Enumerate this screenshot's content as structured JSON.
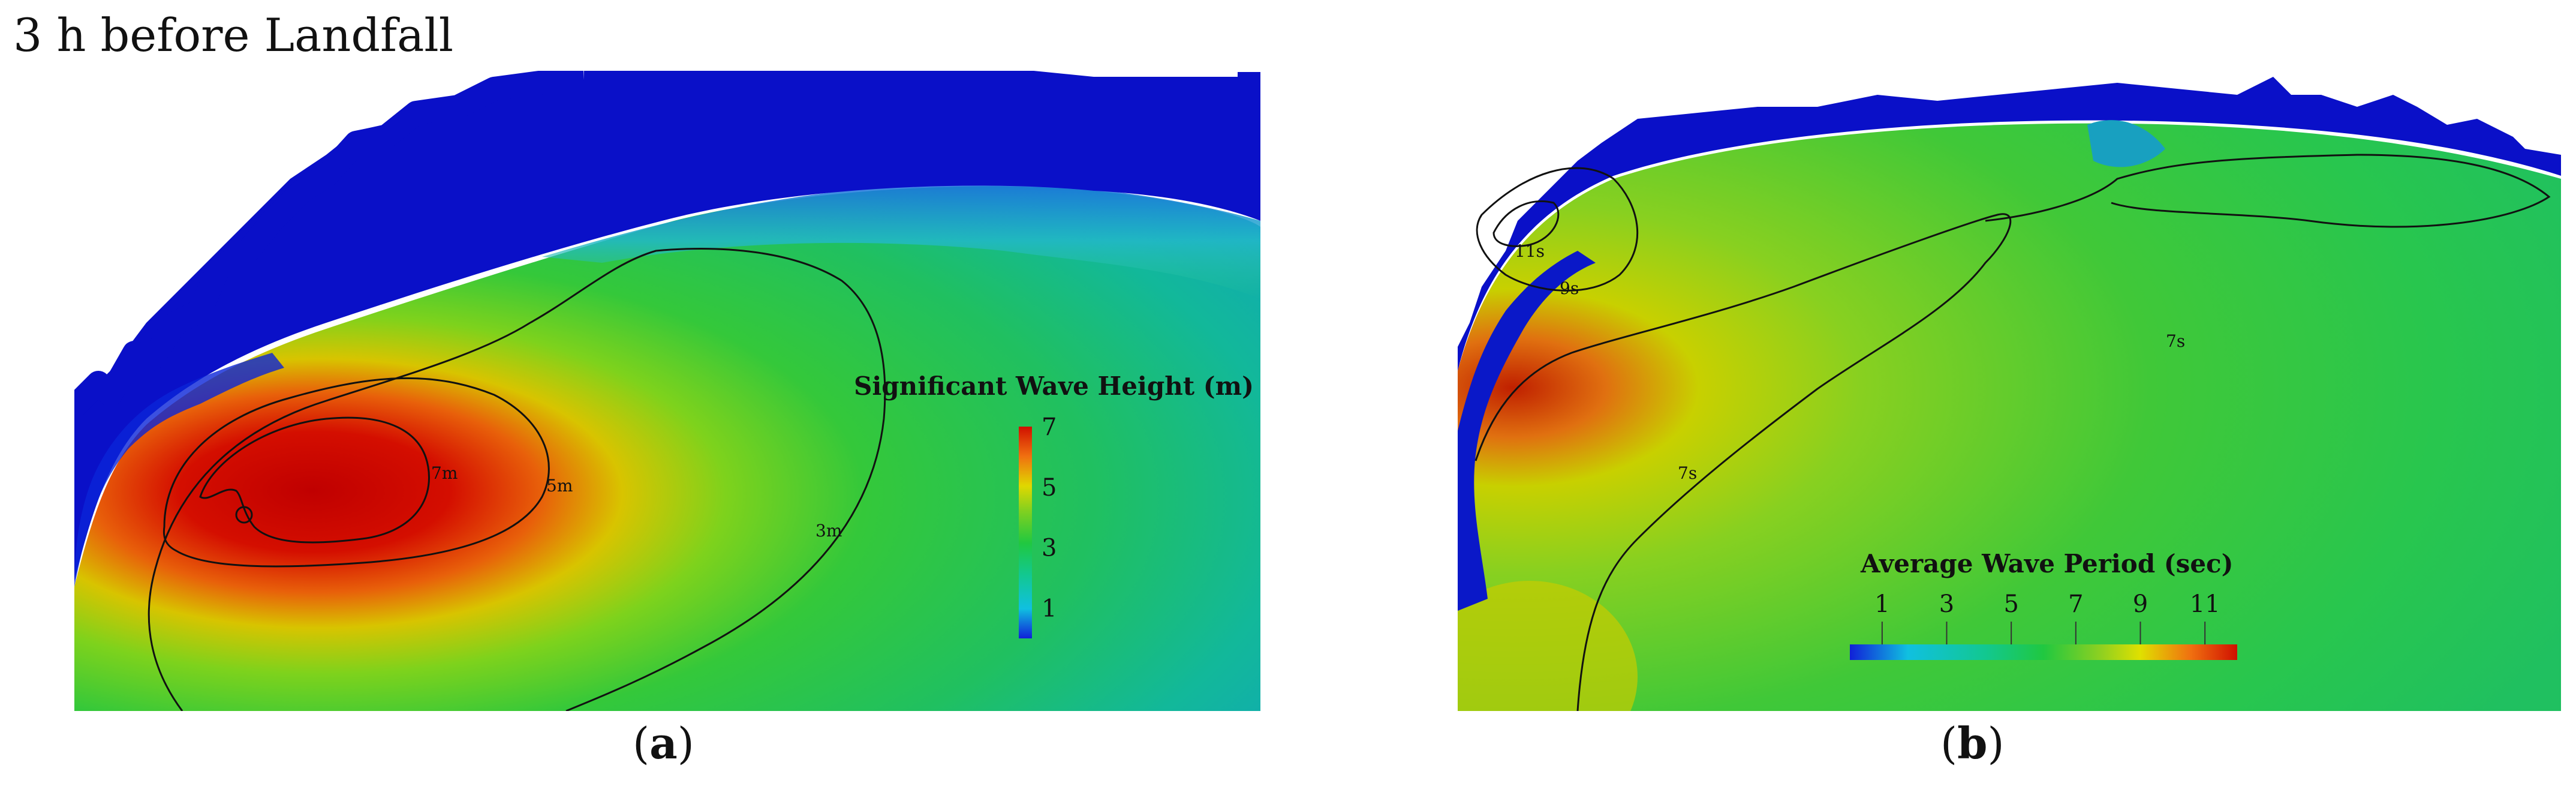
{
  "figure": {
    "title": "3 h before Landfall"
  },
  "panel_a": {
    "label": "a",
    "legend": {
      "title": "Significant Wave Height (m)",
      "ticks": [
        "7",
        "5",
        "3",
        "1"
      ],
      "tick_values": [
        7,
        5,
        3,
        1
      ],
      "range": [
        0,
        7
      ]
    },
    "contours": [
      {
        "label": "7m",
        "value": 7
      },
      {
        "label": "5m",
        "value": 5
      },
      {
        "label": "3m",
        "value": 3
      }
    ]
  },
  "panel_b": {
    "label": "b",
    "legend": {
      "title": "Average Wave Period (sec)",
      "ticks": [
        "1",
        "3",
        "5",
        "7",
        "9",
        "11"
      ],
      "tick_values": [
        1,
        3,
        5,
        7,
        9,
        11
      ],
      "range": [
        0,
        12
      ]
    },
    "contours": [
      {
        "label": "11s",
        "value": 11
      },
      {
        "label": "9s",
        "value": 9
      },
      {
        "label": "7s",
        "value": 7
      },
      {
        "label": "7s",
        "value": 7
      }
    ]
  },
  "colors": {
    "land_blue": "#0a10c8",
    "deep_blue": "#0000a0",
    "green": "#2ecc3a",
    "teal": "#12b8a8",
    "red": "#cc0000",
    "orange": "#e86a10",
    "yellow": "#e6e000"
  }
}
